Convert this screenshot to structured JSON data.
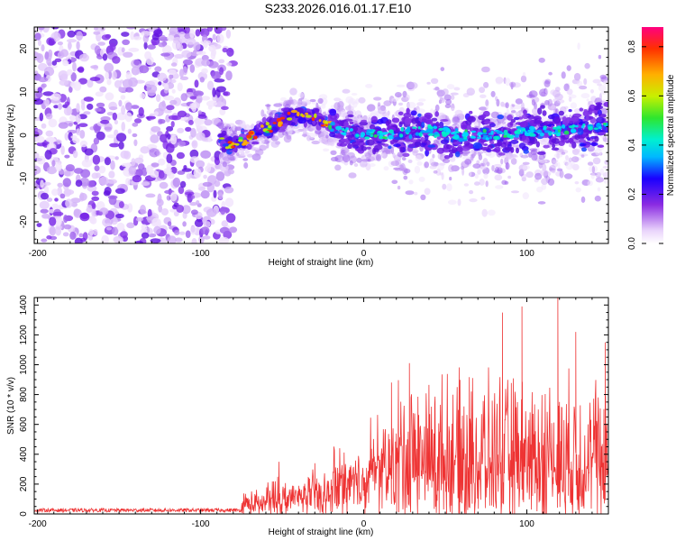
{
  "title": "S233.2026.016.01.17.E10",
  "chart_data": [
    {
      "type": "heatmap",
      "name": "spectrogram",
      "xlabel": "Height of straight line (km)",
      "ylabel": "Frequency (Hz)",
      "xlim": [
        -202,
        150
      ],
      "ylim": [
        -25,
        25
      ],
      "xticks": [
        -200,
        -100,
        0,
        100
      ],
      "yticks": [
        -20,
        -10,
        0,
        10,
        20
      ],
      "colorbar": {
        "label": "Normalized spectral amplitude",
        "range": [
          0,
          0.88
        ],
        "ticks": [
          0.0,
          0.2,
          0.4,
          0.6,
          0.8
        ]
      },
      "noise_region_x": [
        -202,
        -80
      ],
      "ridge": {
        "x": [
          -88,
          -80,
          -70,
          -60,
          -50,
          -40,
          -30,
          -20,
          -10,
          0,
          20,
          40,
          60,
          80,
          100,
          120,
          150
        ],
        "freq": [
          -1,
          -2.5,
          -0.5,
          1.5,
          3.5,
          5,
          4,
          2,
          0.5,
          0,
          0.5,
          1,
          0,
          0,
          1,
          1,
          2
        ]
      }
    },
    {
      "type": "line",
      "name": "snr",
      "xlabel": "Height of straight line (km)",
      "ylabel": "SNR (10 * v/v)",
      "xlim": [
        -202,
        150
      ],
      "ylim": [
        0,
        1450
      ],
      "xticks": [
        -200,
        -100,
        0,
        100
      ],
      "yticks": [
        0,
        200,
        400,
        600,
        800,
        1000,
        1200,
        1400
      ],
      "color": "#ee3333",
      "segments": [
        {
          "x": [
            -202,
            -75
          ],
          "mean": 25,
          "spread": 25
        },
        {
          "x": [
            -75,
            -60
          ],
          "mean": 80,
          "spread": 120
        },
        {
          "x": [
            -60,
            -40
          ],
          "mean": 120,
          "spread": 180
        },
        {
          "x": [
            -40,
            -20
          ],
          "mean": 150,
          "spread": 200
        },
        {
          "x": [
            -20,
            0
          ],
          "mean": 250,
          "spread": 300
        },
        {
          "x": [
            0,
            20
          ],
          "mean": 380,
          "spread": 400
        },
        {
          "x": [
            20,
            150
          ],
          "mean": 450,
          "spread": 700
        }
      ],
      "peaks": [
        {
          "x": -52,
          "y": 350
        },
        {
          "x": -30,
          "y": 340
        },
        {
          "x": 17,
          "y": 880
        },
        {
          "x": 28,
          "y": 1010
        },
        {
          "x": 85,
          "y": 1350
        },
        {
          "x": 97,
          "y": 1390
        },
        {
          "x": 119,
          "y": 1450
        },
        {
          "x": 130,
          "y": 1220
        },
        {
          "x": 148,
          "y": 1150
        }
      ]
    }
  ]
}
